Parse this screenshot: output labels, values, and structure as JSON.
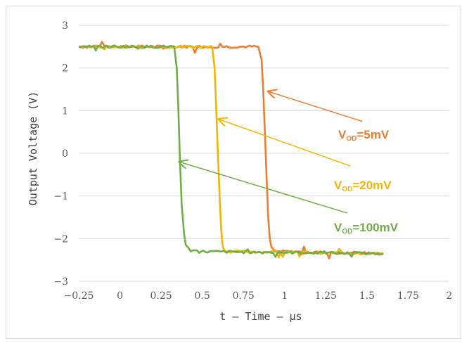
{
  "chart_data": {
    "type": "line",
    "xlabel": "t – Time – µs",
    "ylabel": "Output Voltage (V)",
    "xlim": [
      -0.25,
      2
    ],
    "ylim": [
      -3,
      3
    ],
    "x_ticks": [
      -0.25,
      0,
      0.25,
      0.5,
      0.75,
      1,
      1.25,
      1.5,
      1.75,
      2
    ],
    "x_tick_labels": [
      "−0.25",
      "0",
      "0.25",
      "0.5",
      "0.75",
      "1",
      "1.25",
      "1.5",
      "1.75",
      "2"
    ],
    "y_ticks": [
      3,
      2,
      1,
      0,
      -1,
      -2,
      -3
    ],
    "y_tick_labels": [
      "3",
      "2",
      "1",
      "0",
      "−1",
      "−2",
      "−3"
    ],
    "grid": "horizontal",
    "series": [
      {
        "color": "#ed7d31",
        "points": [
          [
            -0.25,
            2.5
          ],
          [
            0.84,
            2.5
          ],
          [
            0.86,
            2.2
          ],
          [
            0.87,
            1.5
          ],
          [
            0.88,
            0.5
          ],
          [
            0.89,
            -0.5
          ],
          [
            0.9,
            -1.5
          ],
          [
            0.91,
            -2.0
          ],
          [
            0.92,
            -2.2
          ],
          [
            0.94,
            -2.3
          ],
          [
            1.6,
            -2.35
          ]
        ]
      },
      {
        "color": "#f2b500",
        "points": [
          [
            -0.25,
            2.5
          ],
          [
            0.56,
            2.5
          ],
          [
            0.575,
            2.0
          ],
          [
            0.585,
            1.0
          ],
          [
            0.595,
            0.0
          ],
          [
            0.605,
            -1.0
          ],
          [
            0.615,
            -1.8
          ],
          [
            0.625,
            -2.2
          ],
          [
            0.645,
            -2.3
          ],
          [
            1.6,
            -2.35
          ]
        ]
      },
      {
        "color": "#70ad47",
        "points": [
          [
            -0.25,
            2.5
          ],
          [
            0.33,
            2.5
          ],
          [
            0.345,
            2.0
          ],
          [
            0.355,
            1.0
          ],
          [
            0.365,
            -0.2
          ],
          [
            0.375,
            -1.2
          ],
          [
            0.39,
            -1.9
          ],
          [
            0.4,
            -2.15
          ],
          [
            0.43,
            -2.3
          ],
          [
            1.6,
            -2.35
          ]
        ]
      }
    ],
    "annotations": [
      {
        "main": "V",
        "sub": "OD",
        "rest": "=5mV",
        "color": "#ed7d31",
        "arrow_from": [
          1.47,
          0.75
        ],
        "arrow_to": [
          0.9,
          1.45
        ]
      },
      {
        "main": "V",
        "sub": "OD",
        "rest": "=20mV",
        "color": "#f2b500",
        "arrow_from": [
          1.4,
          -0.3
        ],
        "arrow_to": [
          0.6,
          0.8
        ]
      },
      {
        "main": "V",
        "sub": "OD",
        "rest": "=100mV",
        "color": "#70ad47",
        "arrow_from": [
          1.38,
          -1.4
        ],
        "arrow_to": [
          0.36,
          -0.2
        ]
      }
    ]
  }
}
